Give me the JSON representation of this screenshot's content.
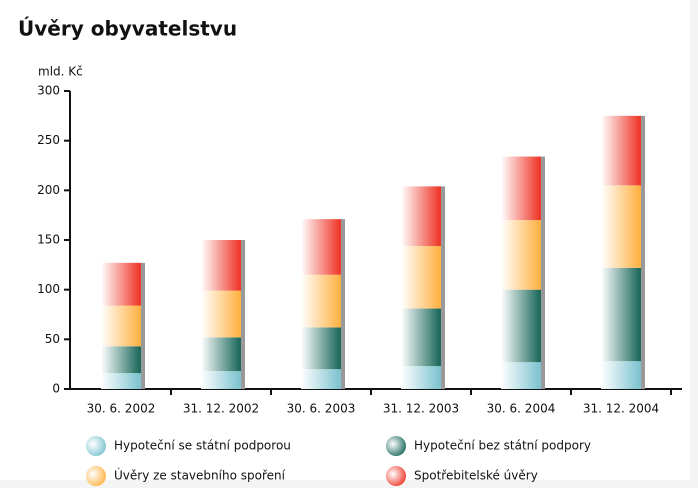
{
  "chart_data": {
    "type": "stacked_bar",
    "title": "Úvěry obyvatelstvu",
    "y_label": "mld. Kč",
    "categories": [
      "30. 6. 2002",
      "31. 12. 2002",
      "30. 6. 2003",
      "31. 12. 2003",
      "30. 6. 2004",
      "31. 12. 2004"
    ],
    "series": [
      {
        "name": "Hypoteční se státní podporou",
        "color": "#7fc4d0",
        "values": [
          16,
          18,
          20,
          23,
          27,
          28
        ]
      },
      {
        "name": "Hypoteční bez státní podpory",
        "color": "#1f6b5e",
        "values": [
          27,
          34,
          42,
          58,
          73,
          94
        ]
      },
      {
        "name": "Úvěry ze stavebního spoření",
        "color": "#ffb347",
        "values": [
          41,
          47,
          53,
          63,
          70,
          83
        ]
      },
      {
        "name": "Spotřebitelské úvěry",
        "color": "#ef3a2c",
        "values": [
          43,
          51,
          56,
          60,
          64,
          70
        ]
      }
    ],
    "ylim": [
      0,
      300
    ],
    "yticks": [
      0,
      50,
      100,
      150,
      200,
      250,
      300
    ]
  }
}
